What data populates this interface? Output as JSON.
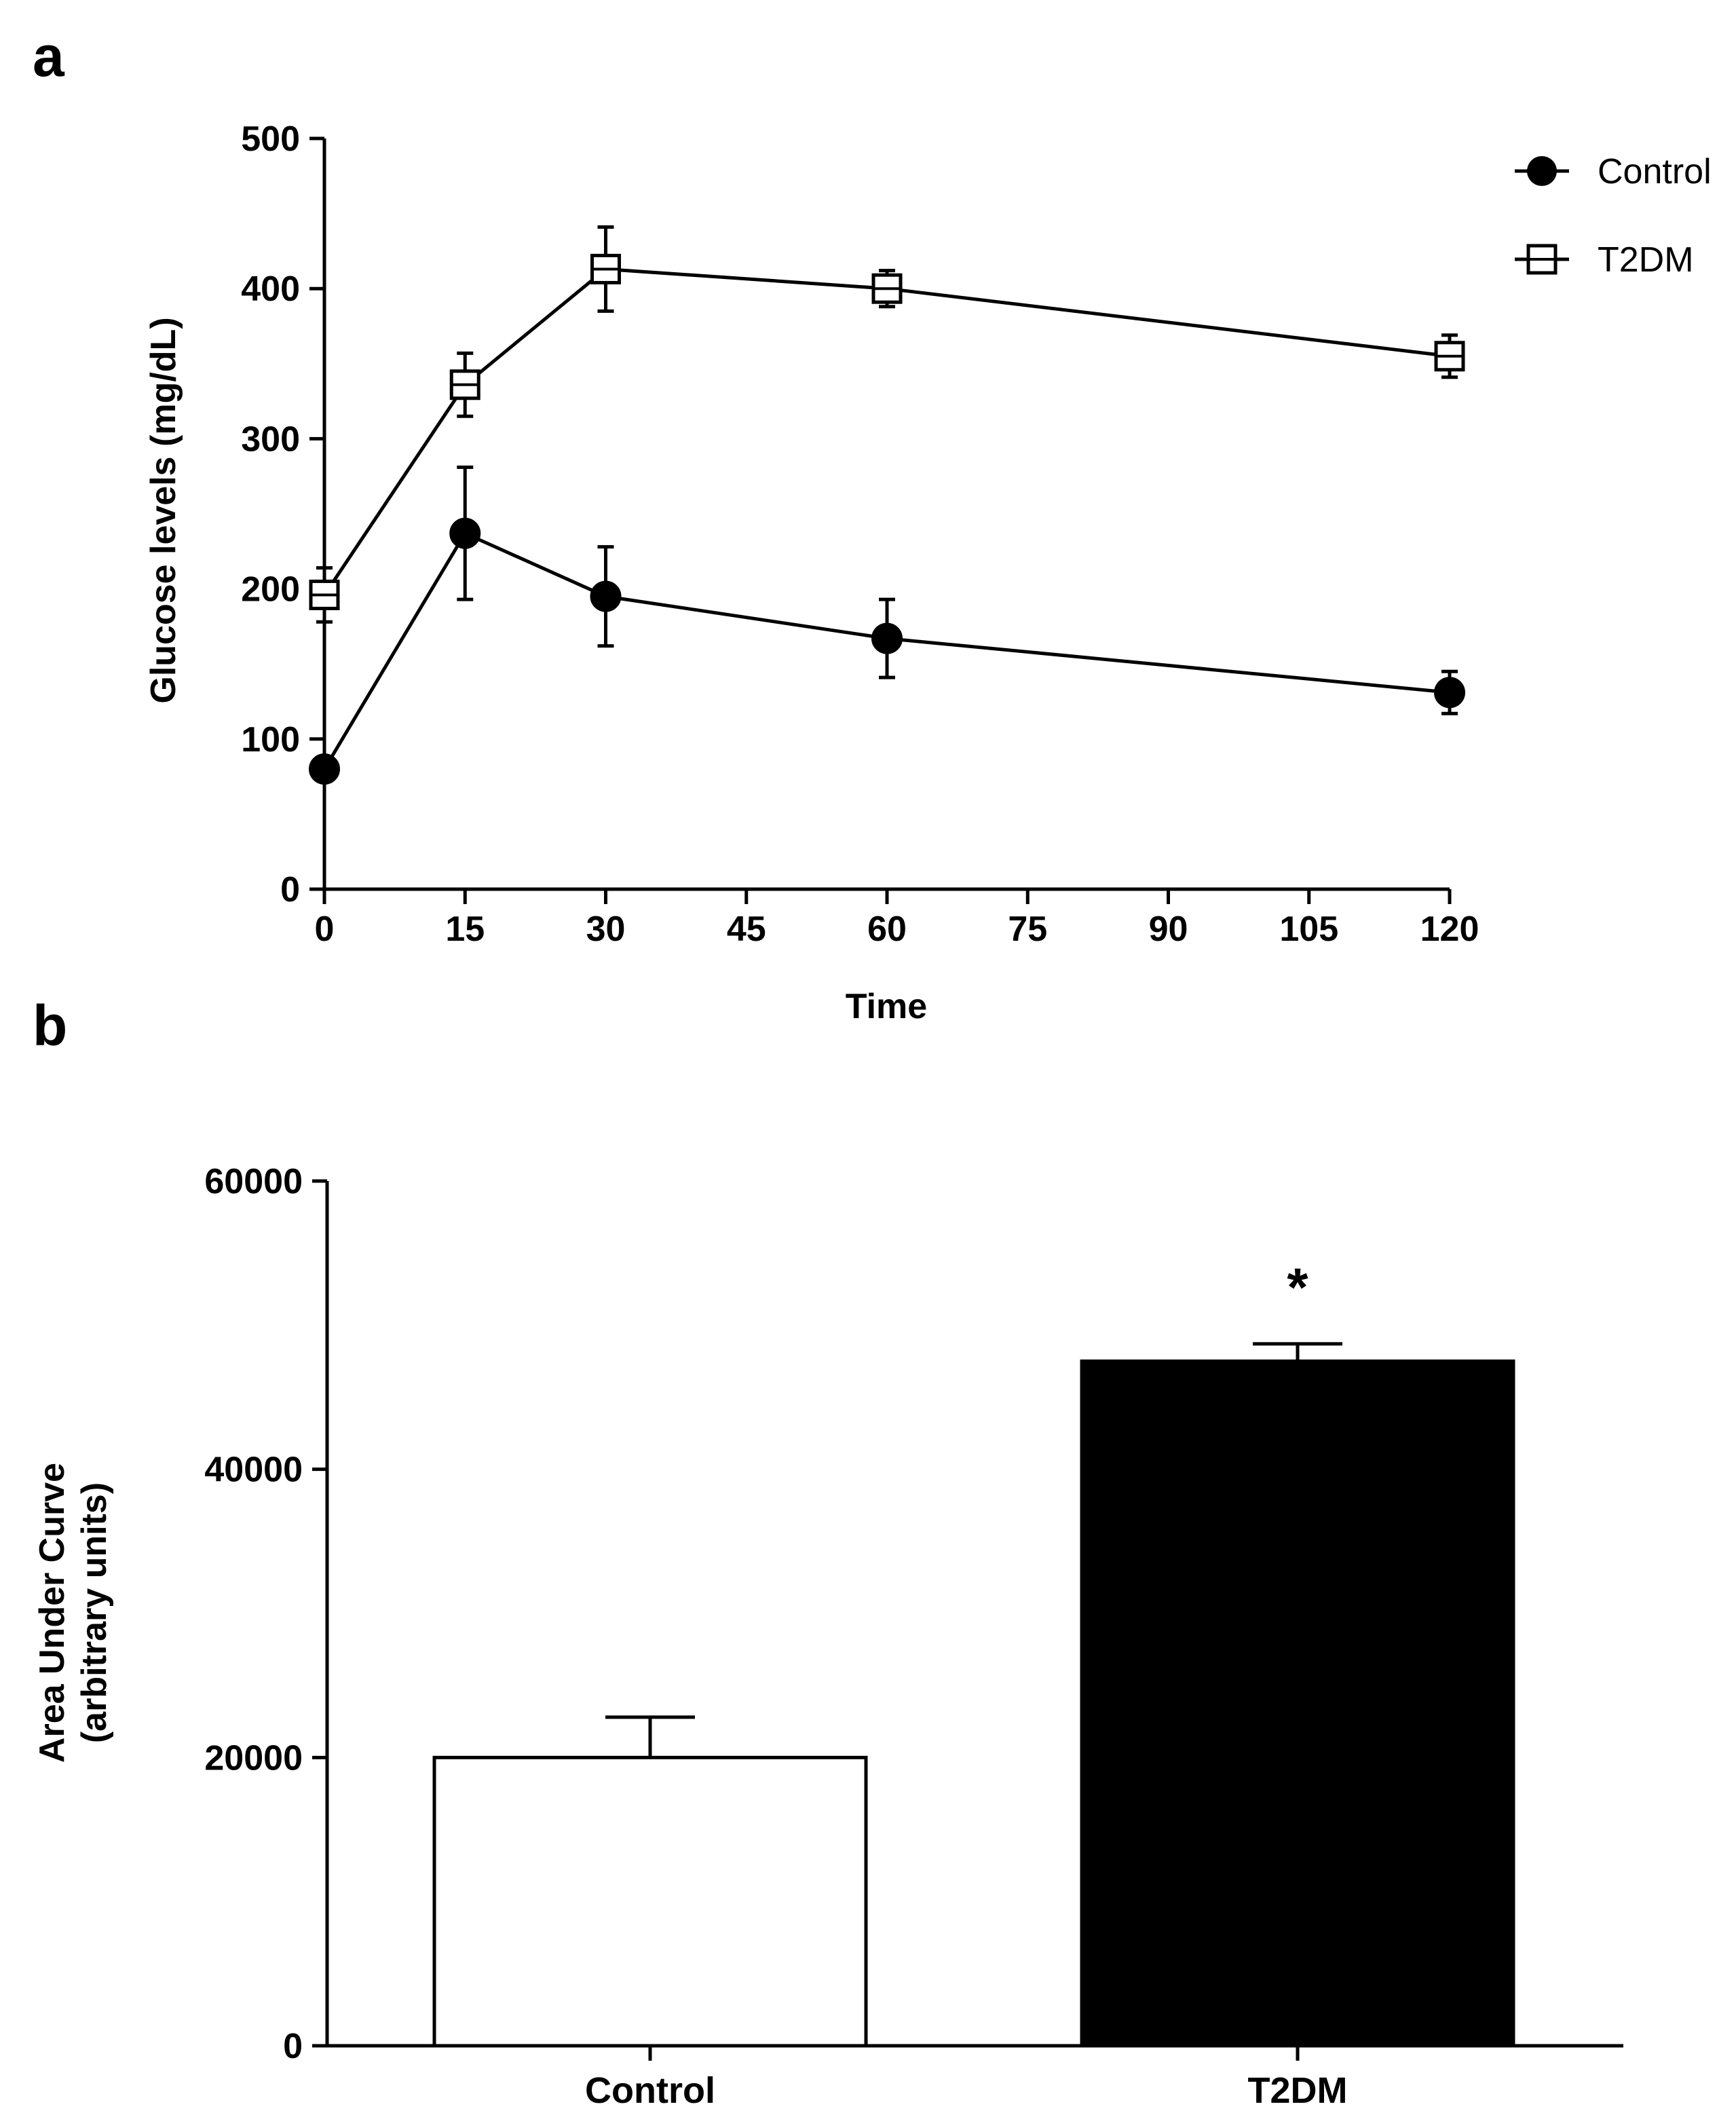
{
  "chart_data": [
    {
      "panel": "a",
      "type": "line",
      "xlabel": "Time",
      "ylabel": "Glucose levels (mg/dL)",
      "xlim": [
        0,
        120
      ],
      "ylim": [
        0,
        500
      ],
      "xticks": [
        0,
        15,
        30,
        45,
        60,
        75,
        90,
        105,
        120
      ],
      "yticks": [
        0,
        100,
        200,
        300,
        400,
        500
      ],
      "grid": false,
      "legend_position": "top-right",
      "series": [
        {
          "name": "Control",
          "marker": "filled-circle",
          "x": [
            0,
            15,
            30,
            60,
            120
          ],
          "y": [
            80,
            237,
            195,
            167,
            131
          ],
          "err": [
            0,
            44,
            33,
            26,
            14
          ]
        },
        {
          "name": "T2DM",
          "marker": "open-square",
          "x": [
            0,
            15,
            30,
            60,
            120
          ],
          "y": [
            196,
            336,
            413,
            400,
            355
          ],
          "err": [
            18,
            21,
            28,
            12,
            14
          ]
        }
      ]
    },
    {
      "panel": "b",
      "type": "bar",
      "categories": [
        "Control",
        "T2DM"
      ],
      "values": [
        20000,
        47500
      ],
      "err": [
        2800,
        1200
      ],
      "fills": [
        "#ffffff",
        "#000000"
      ],
      "significance": [
        "",
        "*"
      ],
      "ylabel_line1": "Area Under Curve",
      "ylabel_line2": "(arbitrary units)",
      "xlabel": "",
      "ylim": [
        0,
        60000
      ],
      "yticks": [
        0,
        20000,
        40000,
        60000
      ],
      "grid": false
    }
  ]
}
